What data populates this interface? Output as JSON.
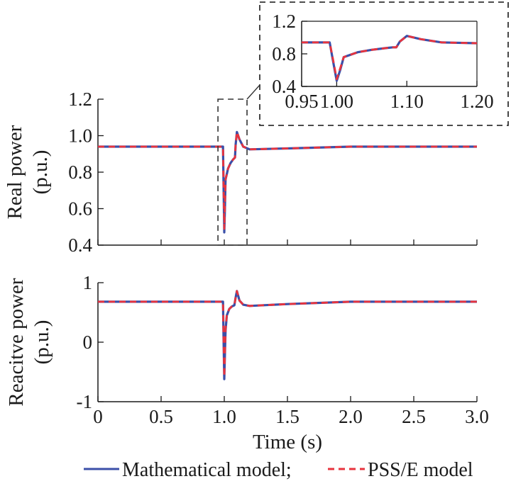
{
  "colors": {
    "mathematical": "#3b4fa8",
    "psse": "#e8333d",
    "axis": "#1a1a1a",
    "zoom_box": "#333333"
  },
  "chart_data": [
    {
      "type": "line",
      "id": "real",
      "ylabel_lines": [
        "Real power",
        "(p.u.)"
      ],
      "xlim": [
        0,
        3
      ],
      "ylim": [
        0.4,
        1.2
      ],
      "yticks": [
        0.4,
        0.6,
        0.8,
        1.0,
        1.2
      ],
      "ytick_labels": [
        "0.4",
        "0.6",
        "0.8",
        "1.0",
        "1.2"
      ],
      "grid": false,
      "series": [
        {
          "name": "Mathematical model",
          "style": "solid",
          "x": [
            0,
            0.99,
            0.995,
            1.0,
            1.005,
            1.01,
            1.02,
            1.03,
            1.05,
            1.07,
            1.085,
            1.09,
            1.1,
            1.12,
            1.15,
            1.2,
            1.5,
            2.0,
            2.5,
            3.0
          ],
          "y": [
            0.94,
            0.94,
            0.7,
            0.47,
            0.6,
            0.76,
            0.79,
            0.82,
            0.85,
            0.87,
            0.88,
            0.95,
            1.02,
            0.98,
            0.94,
            0.925,
            0.93,
            0.94,
            0.94,
            0.94
          ]
        },
        {
          "name": "PSS/E model",
          "style": "dashed",
          "x": [
            0,
            0.99,
            0.995,
            1.0,
            1.005,
            1.01,
            1.02,
            1.03,
            1.05,
            1.07,
            1.085,
            1.09,
            1.1,
            1.12,
            1.15,
            1.2,
            1.5,
            2.0,
            2.5,
            3.0
          ],
          "y": [
            0.94,
            0.94,
            0.72,
            0.49,
            0.62,
            0.76,
            0.79,
            0.82,
            0.85,
            0.87,
            0.88,
            0.95,
            1.02,
            0.98,
            0.94,
            0.925,
            0.93,
            0.94,
            0.94,
            0.94
          ]
        }
      ]
    },
    {
      "type": "line",
      "id": "reactive",
      "ylabel_lines": [
        "Reacitve power",
        "(p.u.)"
      ],
      "xlabel": "Time (s)",
      "xlim": [
        0,
        3
      ],
      "ylim": [
        -1,
        1
      ],
      "yticks": [
        -1,
        0,
        1
      ],
      "ytick_labels": [
        "-1",
        "0",
        "1"
      ],
      "xticks": [
        0,
        0.5,
        1.0,
        1.5,
        2.0,
        2.5,
        3.0
      ],
      "xtick_labels": [
        "0",
        "0.5",
        "1.0",
        "1.5",
        "2.0",
        "2.5",
        "3.0"
      ],
      "grid": false,
      "series": [
        {
          "name": "Mathematical model",
          "style": "solid",
          "x": [
            0,
            0.99,
            0.995,
            1.0,
            1.005,
            1.01,
            1.02,
            1.04,
            1.06,
            1.08,
            1.09,
            1.1,
            1.12,
            1.15,
            1.2,
            1.5,
            2.0,
            2.5,
            3.0
          ],
          "y": [
            0.68,
            0.68,
            0.0,
            -0.62,
            -0.2,
            0.2,
            0.45,
            0.56,
            0.6,
            0.62,
            0.75,
            0.86,
            0.7,
            0.63,
            0.61,
            0.64,
            0.68,
            0.68,
            0.68
          ]
        },
        {
          "name": "PSS/E model",
          "style": "dashed",
          "x": [
            0,
            0.99,
            0.995,
            1.0,
            1.005,
            1.01,
            1.02,
            1.04,
            1.06,
            1.08,
            1.09,
            1.1,
            1.12,
            1.15,
            1.2,
            1.5,
            2.0,
            2.5,
            3.0
          ],
          "y": [
            0.68,
            0.68,
            0.02,
            -0.58,
            -0.18,
            0.22,
            0.46,
            0.56,
            0.6,
            0.62,
            0.75,
            0.86,
            0.7,
            0.63,
            0.61,
            0.64,
            0.68,
            0.68,
            0.68
          ]
        }
      ]
    },
    {
      "type": "line",
      "id": "zoom",
      "xlim": [
        0.95,
        1.2
      ],
      "ylim": [
        0.4,
        1.2
      ],
      "xticks": [
        0.95,
        1.0,
        1.1,
        1.2
      ],
      "xtick_labels": [
        "0.95",
        "1.00",
        "1.10",
        "1.20"
      ],
      "yticks": [
        0.4,
        0.8,
        1.2
      ],
      "ytick_labels": [
        "0.4",
        "0.8",
        "1.2"
      ],
      "grid": false,
      "series": [
        {
          "name": "Mathematical model",
          "style": "solid",
          "x": [
            0.95,
            0.99,
            0.995,
            1.0,
            1.005,
            1.01,
            1.02,
            1.03,
            1.05,
            1.07,
            1.08,
            1.085,
            1.09,
            1.1,
            1.12,
            1.15,
            1.2
          ],
          "y": [
            0.94,
            0.94,
            0.7,
            0.47,
            0.6,
            0.76,
            0.79,
            0.82,
            0.85,
            0.87,
            0.88,
            0.88,
            0.95,
            1.02,
            0.98,
            0.94,
            0.93
          ]
        },
        {
          "name": "PSS/E model",
          "style": "dashed",
          "x": [
            0.95,
            0.99,
            0.995,
            1.0,
            1.005,
            1.01,
            1.02,
            1.03,
            1.05,
            1.07,
            1.08,
            1.085,
            1.09,
            1.1,
            1.12,
            1.15,
            1.2
          ],
          "y": [
            0.94,
            0.94,
            0.72,
            0.49,
            0.62,
            0.76,
            0.79,
            0.82,
            0.85,
            0.87,
            0.88,
            0.88,
            0.95,
            1.02,
            0.98,
            0.94,
            0.93
          ]
        }
      ]
    }
  ],
  "zoom_region": {
    "x": [
      0.95,
      1.18
    ],
    "y": [
      0.4,
      1.2
    ]
  },
  "legend": {
    "placement": "bottom",
    "math_label": "Mathematical model;",
    "psse_label": "PSS/E model"
  }
}
